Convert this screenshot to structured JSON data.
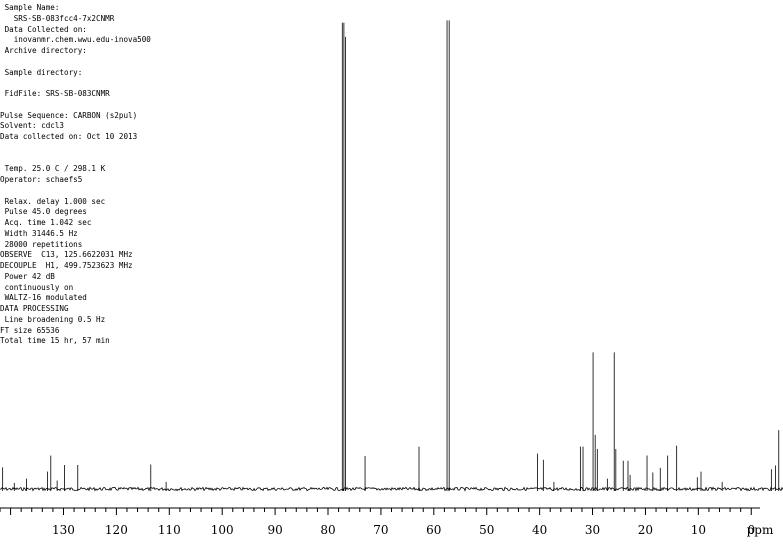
{
  "parameters": [
    " Sample Name:",
    "   SRS-SB-083fcc4-7x2CNMR",
    " Data Collected on:",
    "   inovanmr.chem.wwu.edu-inova500",
    " Archive directory:",
    "",
    " Sample directory:",
    "",
    " FidFile: SRS-SB-083CNMR",
    "",
    "Pulse Sequence: CARBON (s2pul)",
    "Solvent: cdcl3",
    "Data collected on: Oct 10 2013",
    "",
    "",
    " Temp. 25.0 C / 298.1 K",
    "Operator: schaefs5",
    "",
    " Relax. delay 1.000 sec",
    " Pulse 45.0 degrees",
    " Acq. time 1.042 sec",
    " Width 31446.5 Hz",
    " 28000 repetitions",
    "OBSERVE  C13, 125.6622031 MHz",
    "DECOUPLE  H1, 499.7523623 MHz",
    " Power 42 dB",
    " continuously on",
    " WALTZ-16 modulated",
    "DATA PROCESSING",
    " Line broadening 0.5 Hz",
    "FT size 65536",
    "Total time 15 hr, 57 min"
  ],
  "chart_data": {
    "type": "line",
    "title": "",
    "xlabel": "ppm",
    "ylabel": "",
    "xlim": [
      142,
      -6
    ],
    "x_reversed": true,
    "ylim": [
      -3,
      100
    ],
    "grid": false,
    "x_ticks": [
      130,
      120,
      110,
      100,
      90,
      80,
      70,
      60,
      50,
      40,
      30,
      20,
      10,
      0
    ],
    "tick_labels": [
      "130",
      "120",
      "110",
      "100",
      "90",
      "80",
      "70",
      "60",
      "50",
      "40",
      "30",
      "20",
      "10",
      "0"
    ],
    "unit_label": "ppm",
    "peaks": [
      {
        "ppm": 141.5,
        "height": 4.6
      },
      {
        "ppm": 139.3,
        "height": 1.3
      },
      {
        "ppm": 137.0,
        "height": 2.2
      },
      {
        "ppm": 133.0,
        "height": 3.7
      },
      {
        "ppm": 132.4,
        "height": 7.1
      },
      {
        "ppm": 131.2,
        "height": 1.8
      },
      {
        "ppm": 129.8,
        "height": 5.1
      },
      {
        "ppm": 127.3,
        "height": 5.1
      },
      {
        "ppm": 113.5,
        "height": 5.2
      },
      {
        "ppm": 110.6,
        "height": 1.5
      },
      {
        "ppm": 77.3,
        "height": 99.0
      },
      {
        "ppm": 77.0,
        "height": 99.0
      },
      {
        "ppm": 76.7,
        "height": 96.0
      },
      {
        "ppm": 73.0,
        "height": 7.0
      },
      {
        "ppm": 62.8,
        "height": 9.0
      },
      {
        "ppm": 57.5,
        "height": 99.5
      },
      {
        "ppm": 57.1,
        "height": 99.5
      },
      {
        "ppm": 40.4,
        "height": 7.5
      },
      {
        "ppm": 39.3,
        "height": 6.2
      },
      {
        "ppm": 37.3,
        "height": 1.5
      },
      {
        "ppm": 32.3,
        "height": 9.0
      },
      {
        "ppm": 31.8,
        "height": 9.0
      },
      {
        "ppm": 29.9,
        "height": 29.0
      },
      {
        "ppm": 29.5,
        "height": 11.5
      },
      {
        "ppm": 29.1,
        "height": 8.5
      },
      {
        "ppm": 27.2,
        "height": 2.2
      },
      {
        "ppm": 25.9,
        "height": 29.0
      },
      {
        "ppm": 25.6,
        "height": 8.5
      },
      {
        "ppm": 24.2,
        "height": 6.0
      },
      {
        "ppm": 23.3,
        "height": 6.0
      },
      {
        "ppm": 22.9,
        "height": 3.0
      },
      {
        "ppm": 19.7,
        "height": 7.1
      },
      {
        "ppm": 18.6,
        "height": 3.5
      },
      {
        "ppm": 17.2,
        "height": 4.5
      },
      {
        "ppm": 15.8,
        "height": 7.1
      },
      {
        "ppm": 14.1,
        "height": 9.2
      },
      {
        "ppm": 10.2,
        "height": 2.5
      },
      {
        "ppm": 9.5,
        "height": 3.7
      },
      {
        "ppm": 5.5,
        "height": 1.5
      },
      {
        "ppm": -3.8,
        "height": 4.2
      },
      {
        "ppm": -4.6,
        "height": 5.0
      },
      {
        "ppm": -5.2,
        "height": 12.5
      }
    ]
  }
}
